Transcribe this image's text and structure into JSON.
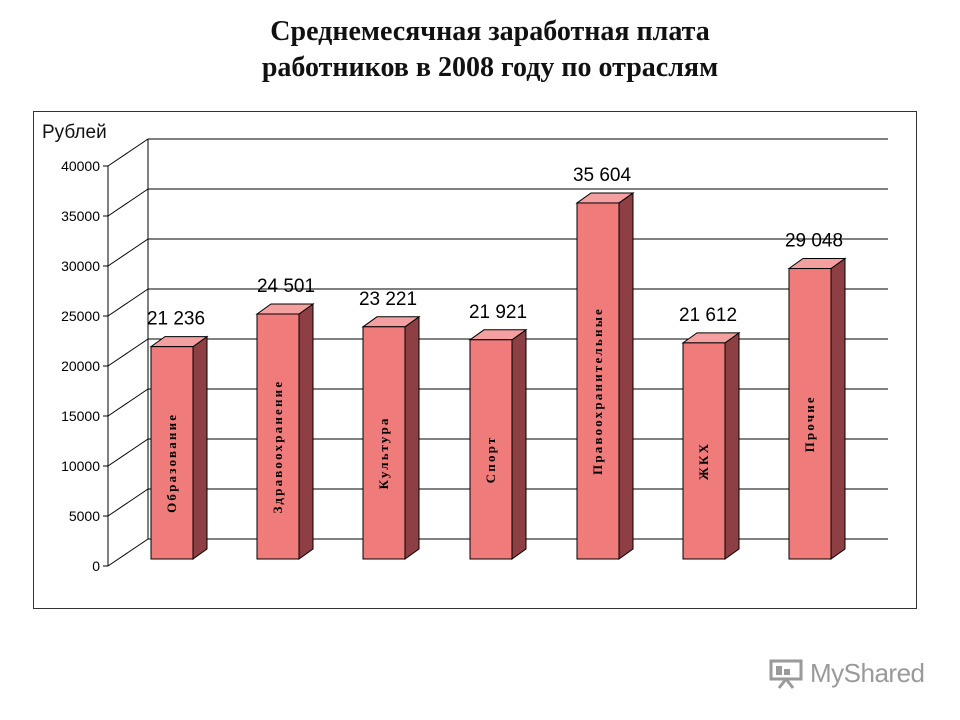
{
  "page": {
    "title_line1": "Среднемесячная заработная плата",
    "title_line2": "работников в 2008 году по отраслям",
    "watermark_text": "MyShared",
    "watermark_icon": "presentation-board-icon"
  },
  "chart_data": {
    "type": "bar",
    "style": "3d",
    "title": "Среднемесячная заработная плата работников в 2008 году по отраслям",
    "ylabel": "Рублей",
    "xlabel": "",
    "ylim": [
      0,
      40000
    ],
    "yticks": [
      "0",
      "5000",
      "10000",
      "15000",
      "20000",
      "25000",
      "30000",
      "35000",
      "40000"
    ],
    "grid": true,
    "legend": "none",
    "categories": [
      "Образование",
      "Здравоохранение",
      "Культура",
      "Спорт",
      "Правоохранительные",
      "ЖКХ",
      "Прочие"
    ],
    "values": [
      21236,
      24501,
      23221,
      21921,
      35604,
      21612,
      29048
    ],
    "data_labels": [
      "21 236",
      "24 501",
      "23 221",
      "21 921",
      "35 604",
      "21 612",
      "29 048"
    ],
    "colors": {
      "bar_front": "#f07b7b",
      "bar_side": "#8e3f44",
      "bar_top": "#f4a0a0",
      "grid": "#000000"
    }
  }
}
